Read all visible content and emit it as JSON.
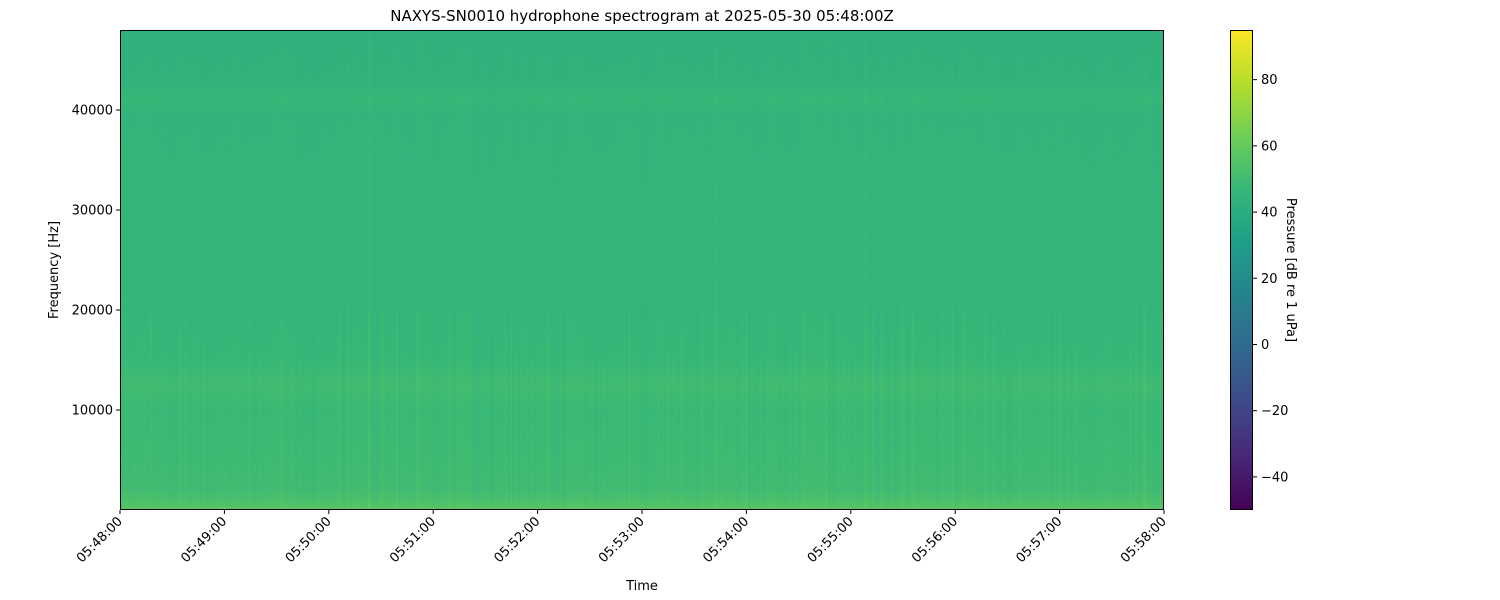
{
  "chart_data": {
    "type": "heatmap",
    "title": "NAXYS-SN0010 hydrophone spectrogram at 2025-05-30 05:48:00Z",
    "xlabel": "Time",
    "ylabel": "Frequency [Hz]",
    "colorbar_label": "Pressure [dB re 1 uPa]",
    "colormap": "viridis",
    "xlim": [
      "05:48:00",
      "05:58:00"
    ],
    "ylim": [
      0,
      48000
    ],
    "clim": [
      -50,
      95
    ],
    "x_ticks": [
      "05:48:00",
      "05:49:00",
      "05:50:00",
      "05:51:00",
      "05:52:00",
      "05:53:00",
      "05:54:00",
      "05:55:00",
      "05:56:00",
      "05:57:00",
      "05:58:00"
    ],
    "y_ticks": [
      10000,
      20000,
      30000,
      40000
    ],
    "y_tick_labels": [
      "10000",
      "20000",
      "30000",
      "40000"
    ],
    "colorbar_ticks": [
      -40,
      -20,
      0,
      20,
      40,
      60,
      80
    ],
    "colorbar_tick_labels": [
      "−40",
      "−20",
      "0",
      "20",
      "40",
      "60",
      "80"
    ],
    "frequency_profile": {
      "frequency_hz": [
        0,
        500,
        2000,
        5000,
        10000,
        12500,
        15000,
        20000,
        30000,
        40000,
        41000,
        43000,
        48000
      ],
      "level_db": [
        58,
        54,
        50,
        49,
        48,
        50,
        47,
        46,
        46,
        45,
        47,
        44,
        43
      ]
    },
    "grid": false
  }
}
